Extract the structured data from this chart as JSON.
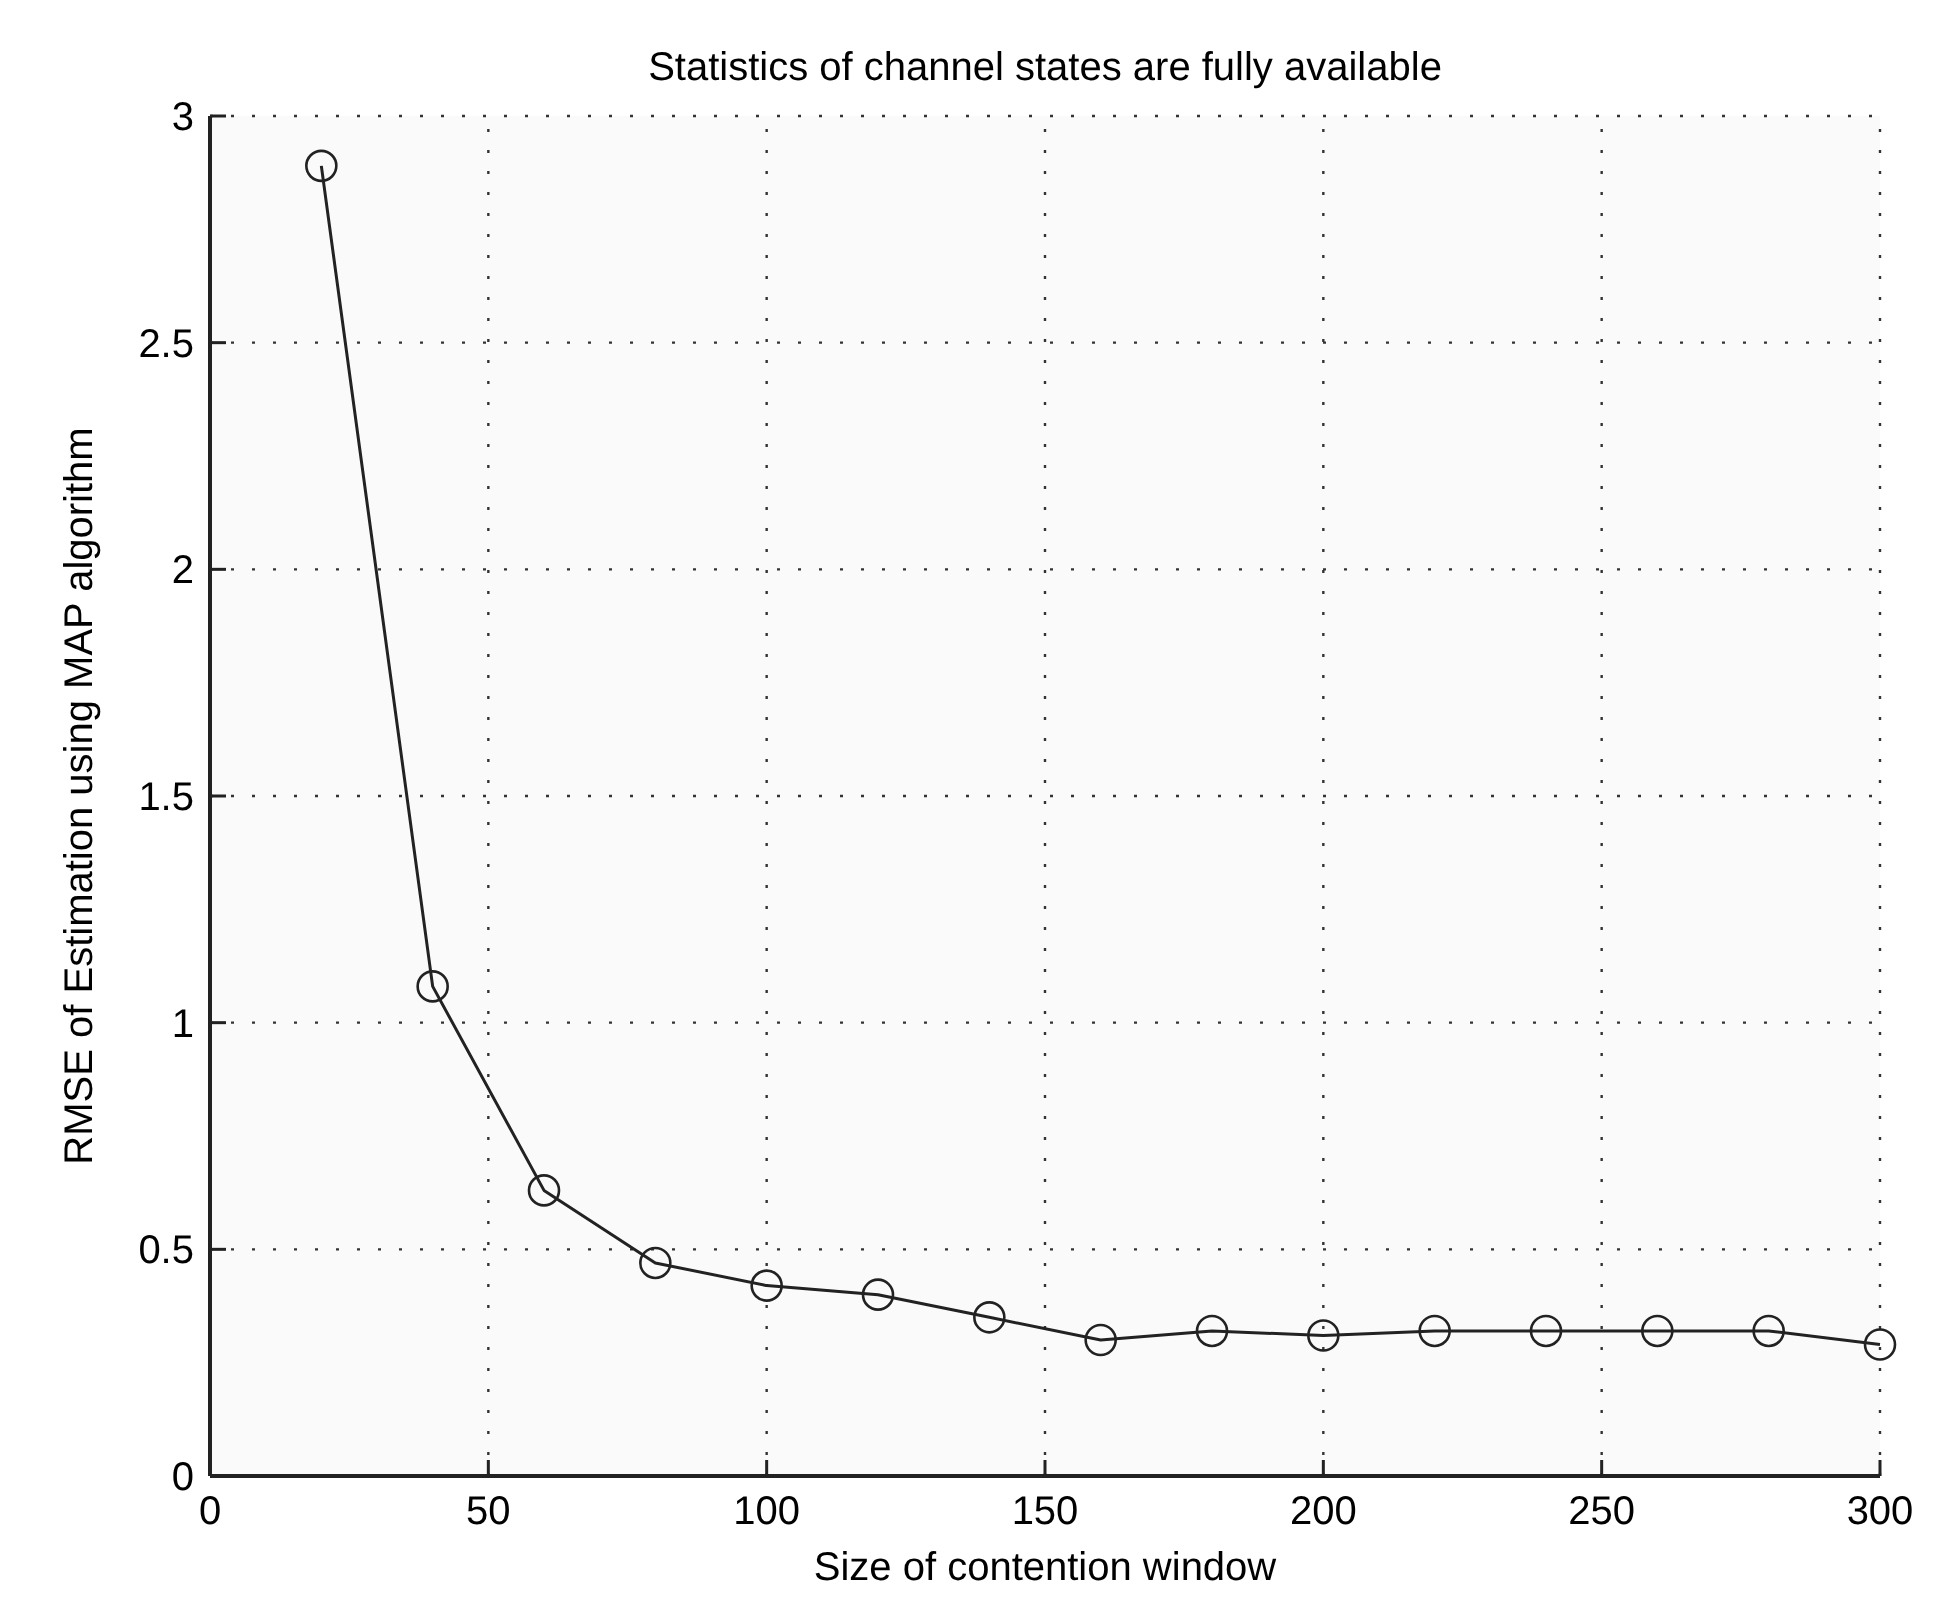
{
  "chart_data": {
    "type": "line",
    "title": "Statistics of channel states are fully available",
    "xlabel": "Size of contention window",
    "ylabel": "RMSE of Estimation using MAP algorithm",
    "x": [
      20,
      40,
      60,
      80,
      100,
      120,
      140,
      160,
      180,
      200,
      220,
      240,
      260,
      280,
      300
    ],
    "series": [
      {
        "color": "#222222",
        "values": [
          2.89,
          1.08,
          0.63,
          0.47,
          0.42,
          0.4,
          0.35,
          0.3,
          0.32,
          0.31,
          0.32,
          0.32,
          0.32,
          0.32,
          0.29
        ]
      }
    ],
    "xlim": [
      0,
      300
    ],
    "xticks": [
      0,
      50,
      100,
      150,
      200,
      250,
      300
    ],
    "ylim": [
      0,
      3
    ],
    "yticks": [
      0,
      0.5,
      1,
      1.5,
      2,
      2.5,
      3
    ],
    "grid": true,
    "marker": "circle",
    "line_style": "solid"
  }
}
